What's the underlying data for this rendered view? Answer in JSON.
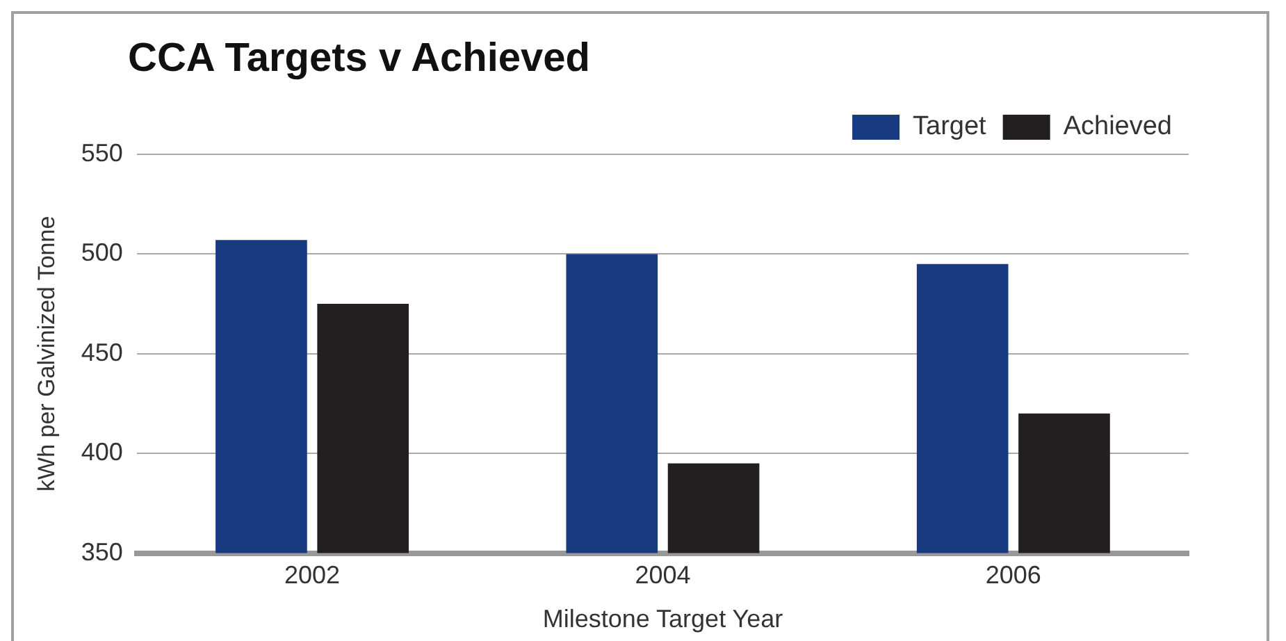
{
  "chart_data": {
    "type": "bar",
    "title": "CCA Targets v Achieved",
    "xlabel": "Milestone Target Year",
    "ylabel": "kWh per Galvinized Tonne",
    "categories": [
      "2002",
      "2004",
      "2006"
    ],
    "series": [
      {
        "name": "Target",
        "color": "#173a80",
        "values": [
          507,
          500,
          495
        ]
      },
      {
        "name": "Achieved",
        "color": "#231f20",
        "values": [
          475,
          395,
          420
        ]
      }
    ],
    "ylim": [
      350,
      550
    ],
    "yticks": [
      350,
      400,
      450,
      500,
      550
    ],
    "grid": "y",
    "legend": "top right"
  }
}
